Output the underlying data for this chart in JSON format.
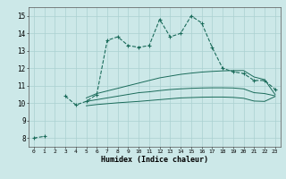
{
  "x": [
    0,
    1,
    2,
    3,
    4,
    5,
    6,
    7,
    8,
    9,
    10,
    11,
    12,
    13,
    14,
    15,
    16,
    17,
    18,
    19,
    20,
    21,
    22,
    23
  ],
  "line_main": [
    8.0,
    8.1,
    null,
    10.4,
    9.9,
    10.1,
    10.5,
    13.6,
    13.8,
    13.3,
    13.2,
    13.3,
    14.8,
    13.8,
    14.0,
    15.0,
    14.6,
    13.2,
    12.0,
    11.8,
    11.7,
    11.3,
    11.3,
    10.8
  ],
  "line_upper": [
    null,
    null,
    null,
    null,
    null,
    10.3,
    10.55,
    10.7,
    10.85,
    11.0,
    11.15,
    11.3,
    11.45,
    11.55,
    11.65,
    11.72,
    11.78,
    11.82,
    11.85,
    11.87,
    11.87,
    11.5,
    11.35,
    10.5
  ],
  "line_mid": [
    null,
    null,
    null,
    null,
    null,
    10.1,
    10.2,
    10.3,
    10.4,
    10.5,
    10.6,
    10.65,
    10.72,
    10.78,
    10.82,
    10.85,
    10.87,
    10.88,
    10.88,
    10.87,
    10.82,
    10.6,
    10.55,
    10.42
  ],
  "line_lower": [
    null,
    null,
    null,
    null,
    null,
    9.85,
    9.92,
    9.97,
    10.02,
    10.06,
    10.1,
    10.15,
    10.2,
    10.25,
    10.3,
    10.32,
    10.34,
    10.35,
    10.35,
    10.33,
    10.28,
    10.12,
    10.1,
    10.38
  ],
  "color": "#1a6b5a",
  "bg_color": "#cce8e8",
  "grid_color": "#aad0d0",
  "ylabel_vals": [
    8,
    9,
    10,
    11,
    12,
    13,
    14,
    15
  ],
  "xlabel": "Humidex (Indice chaleur)",
  "xlim": [
    -0.5,
    23.5
  ],
  "ylim": [
    7.5,
    15.5
  ]
}
